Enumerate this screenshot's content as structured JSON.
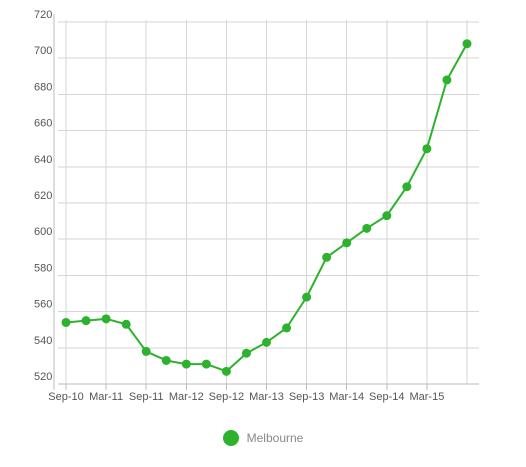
{
  "colors": {
    "series": "#2eb22e",
    "grid": "#d6d6d6",
    "axis": "#bbbbbb",
    "tick_text": "#555555",
    "legend_text": "#888888"
  },
  "chart_data": {
    "type": "line",
    "title": "",
    "xlabel": "",
    "ylabel": "",
    "x": [
      "Sep-10",
      "Dec-10",
      "Mar-11",
      "Jun-11",
      "Sep-11",
      "Dec-11",
      "Mar-12",
      "Jun-12",
      "Sep-12",
      "Dec-12",
      "Mar-13",
      "Jun-13",
      "Sep-13",
      "Dec-13",
      "Mar-14",
      "Jun-14",
      "Sep-14",
      "Dec-14",
      "Mar-15",
      "Jun-15",
      "Sep-15"
    ],
    "x_tick_labels": [
      "Sep-10",
      "Mar-11",
      "Sep-11",
      "Mar-12",
      "Sep-12",
      "Mar-13",
      "Sep-13",
      "Mar-14",
      "Sep-14",
      "Mar-15"
    ],
    "ylim": [
      520,
      720
    ],
    "y_ticks": [
      520,
      540,
      560,
      580,
      600,
      620,
      640,
      660,
      680,
      700,
      720
    ],
    "grid": true,
    "legend_position": "bottom-center",
    "series": [
      {
        "name": "Melbourne",
        "values": [
          554,
          555,
          556,
          553,
          538,
          533,
          531,
          531,
          527,
          537,
          543,
          551,
          568,
          590,
          598,
          606,
          613,
          629,
          650,
          688,
          708
        ]
      }
    ]
  }
}
